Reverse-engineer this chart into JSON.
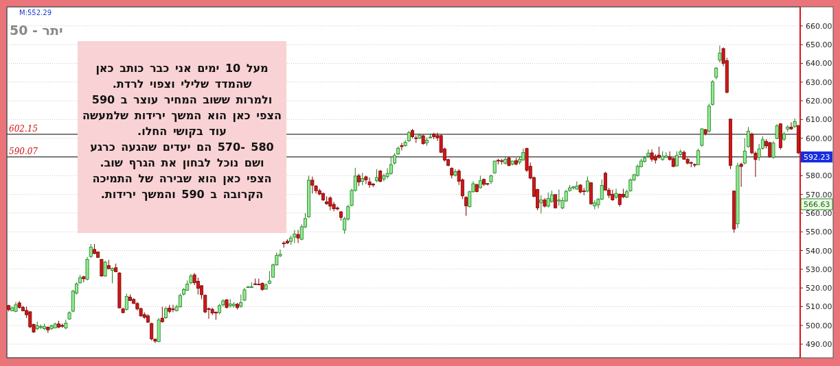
{
  "chart_data": {
    "type": "candlestick",
    "title": "יתר - 50",
    "annotations": [
      "M:552.29",
      "מעל 10 ימים אני כבר כותב כאן\nשהמדד שלילי וצפוי לרדת.\nולמרות ששוב המחיר עוצר ב 590\nהצפי כאן הוא המשך ירידות שלמעשה\nעוד בקושי החלו.\n580 -570 הם יעדים שהגעה כרגע\nושם נוכל לבחון את הגרף שוב.\nהצפי כאן הוא שבירה של התמיכה\nהקרובה ב 590 והמשך ירידות.",
      "592.23",
      "566.63"
    ],
    "categories": [
      null,
      null,
      null,
      null,
      null,
      null,
      null,
      null,
      null,
      null,
      null,
      null,
      null,
      null,
      null,
      null,
      null,
      null,
      null,
      null,
      null,
      null,
      null,
      null,
      null,
      null,
      null,
      null,
      null,
      null,
      null,
      null,
      null,
      null,
      null,
      null,
      null,
      null,
      null,
      null,
      null,
      null,
      null,
      null,
      null,
      null,
      null,
      null,
      null,
      null,
      null,
      null,
      null,
      null,
      null,
      null,
      null,
      null,
      null,
      null,
      null,
      null,
      null,
      null,
      null,
      null,
      null,
      null,
      null,
      null,
      null,
      null,
      null,
      null,
      null,
      null,
      null,
      null,
      null,
      null,
      null,
      null,
      null,
      null,
      null,
      null,
      null,
      null,
      null,
      null,
      null,
      null,
      null,
      null,
      null,
      null,
      null,
      null,
      null,
      null,
      null,
      null,
      null,
      null,
      null,
      null,
      null,
      null,
      null,
      null,
      null,
      null,
      null,
      null,
      null,
      null,
      null,
      null,
      null,
      null,
      null,
      null,
      null,
      null,
      null,
      null,
      null,
      null,
      null,
      null,
      null,
      null,
      null,
      null,
      null,
      null,
      null,
      null,
      null,
      null,
      null,
      null,
      null,
      null,
      null,
      null,
      null,
      null,
      null,
      null,
      null,
      null,
      null,
      null,
      null,
      null,
      null,
      null,
      null,
      null,
      null,
      null,
      null,
      null,
      null,
      null,
      null,
      null,
      null,
      null,
      null,
      null,
      null,
      null,
      null,
      null,
      null,
      null,
      null,
      null,
      null,
      null,
      null,
      null,
      null,
      null,
      null,
      null,
      null,
      null,
      null,
      null,
      null,
      null,
      null,
      null,
      null,
      null,
      null,
      null,
      null,
      null,
      null,
      null,
      null,
      null,
      null,
      null,
      null,
      null,
      null,
      null,
      null,
      null,
      null,
      null,
      null,
      null,
      null,
      null,
      null,
      null
    ],
    "ohlc": [
      [
        510.6,
        511,
        507.5,
        508.4
      ],
      [
        507.8,
        510,
        507.5,
        509.4
      ],
      [
        507.5,
        512.5,
        507,
        511
      ],
      [
        512,
        513,
        509,
        509.6
      ],
      [
        509.6,
        510.5,
        507.5,
        507.8
      ],
      [
        508,
        510,
        504,
        505.7
      ],
      [
        507.3,
        507.5,
        498.5,
        499.2
      ],
      [
        500.5,
        501,
        496,
        496.5
      ],
      [
        498.2,
        502,
        497.5,
        499.9
      ],
      [
        499,
        500.5,
        498,
        499.3
      ],
      [
        498.2,
        501,
        497.5,
        499.5
      ],
      [
        499,
        499.5,
        496,
        497.6
      ],
      [
        498.3,
        500.5,
        497.5,
        499.7
      ],
      [
        498.6,
        501.5,
        498.5,
        500.7
      ],
      [
        500.8,
        502.5,
        498.5,
        499.1
      ],
      [
        500,
        501,
        498.7,
        499.5
      ],
      [
        498.6,
        503,
        498,
        501.2
      ],
      [
        503.4,
        507.5,
        503,
        506.8
      ],
      [
        507.6,
        519,
        507,
        518.3
      ],
      [
        517.2,
        523,
        516.5,
        522.2
      ],
      [
        522.7,
        527,
        522.5,
        525.5
      ],
      [
        526,
        526.5,
        523,
        524.9
      ],
      [
        524.7,
        536.5,
        524,
        535.3
      ],
      [
        536.8,
        543.5,
        536,
        541.8
      ],
      [
        540.6,
        543.5,
        538,
        538.4
      ],
      [
        539.2,
        539.5,
        536,
        536.3
      ],
      [
        535.3,
        535.5,
        526,
        526.4
      ],
      [
        526.4,
        534.5,
        526,
        533.8
      ],
      [
        532,
        535,
        530,
        530.3
      ],
      [
        529.4,
        531,
        522.5,
        530.4
      ],
      [
        530.8,
        533,
        528.5,
        528.6
      ],
      [
        528,
        528.5,
        509,
        509.4
      ],
      [
        508.8,
        509.5,
        506.5,
        506.8
      ],
      [
        508.5,
        517,
        508,
        515.5
      ],
      [
        515.1,
        516.5,
        513,
        513.3
      ],
      [
        513.9,
        514.5,
        511.5,
        511.7
      ],
      [
        511.7,
        512.5,
        508,
        508.8
      ],
      [
        509,
        509.5,
        504.5,
        505.1
      ],
      [
        505.8,
        507,
        503.5,
        504.3
      ],
      [
        505.1,
        506,
        501.5,
        501.7
      ],
      [
        501,
        501.5,
        492,
        492.8
      ],
      [
        492.6,
        493,
        490.6,
        491.6
      ],
      [
        491.3,
        504,
        491,
        502.9
      ],
      [
        503.9,
        510,
        501.5,
        501.9
      ],
      [
        504.1,
        510,
        503.5,
        509
      ],
      [
        509.3,
        511,
        506.5,
        507.5
      ],
      [
        508.8,
        511,
        507,
        508.5
      ],
      [
        507.8,
        511,
        507.5,
        509.9
      ],
      [
        510,
        517,
        509.5,
        516
      ],
      [
        516.7,
        520,
        516,
        519.2
      ],
      [
        518.8,
        524,
        518.5,
        522.1
      ],
      [
        522.7,
        527.5,
        522,
        526.4
      ],
      [
        527,
        528,
        521.5,
        522.8
      ],
      [
        523.6,
        525.5,
        516.5,
        519.8
      ],
      [
        521.2,
        521.5,
        514,
        516.4
      ],
      [
        516.1,
        516.5,
        506.5,
        507.2
      ],
      [
        509,
        509.5,
        503.5,
        508.5
      ],
      [
        508.6,
        509.5,
        505.5,
        506.6
      ],
      [
        507,
        507.5,
        503,
        506.6
      ],
      [
        506.8,
        511.5,
        506,
        510.6
      ],
      [
        511,
        514,
        510,
        513.1
      ],
      [
        513.7,
        514,
        509,
        509.6
      ],
      [
        510.5,
        514,
        509.5,
        511.5
      ],
      [
        510.5,
        512.5,
        509.5,
        511.3
      ],
      [
        511.3,
        512,
        508.5,
        509.5
      ],
      [
        510.2,
        516.5,
        509.5,
        512.2
      ],
      [
        513.5,
        520,
        513,
        519
      ],
      [
        520.4,
        521,
        520,
        520.6
      ],
      [
        520.3,
        523,
        520,
        520.7
      ],
      [
        522.2,
        525,
        521.5,
        521.9
      ],
      [
        522,
        525,
        521.5,
        521.7
      ],
      [
        522.5,
        523,
        518.5,
        519.2
      ],
      [
        519.4,
        522.5,
        519,
        521.6
      ],
      [
        522.5,
        529,
        522,
        523.7
      ],
      [
        525.8,
        533,
        525.5,
        532.3
      ],
      [
        532.3,
        539,
        532,
        537.4
      ],
      [
        537.2,
        540.5,
        536.5,
        538
      ],
      [
        544,
        545,
        541.5,
        543.6
      ],
      [
        545,
        546,
        543.5,
        544
      ],
      [
        544.9,
        548,
        543,
        546.7
      ],
      [
        547.2,
        551,
        544,
        548.8
      ],
      [
        548.6,
        551,
        544,
        546.7
      ],
      [
        546,
        554,
        545.5,
        552.7
      ],
      [
        552.6,
        560,
        552,
        557.1
      ],
      [
        558,
        580,
        557.5,
        577.6
      ],
      [
        577.6,
        579.5,
        570.5,
        574.9
      ],
      [
        574.5,
        575,
        570.5,
        572
      ],
      [
        572,
        573,
        569.5,
        570.2
      ],
      [
        570.5,
        571,
        566.5,
        567
      ],
      [
        566,
        569,
        564.5,
        565
      ],
      [
        568.1,
        569,
        561.5,
        563.7
      ],
      [
        564.7,
        566,
        561,
        562.3
      ],
      [
        562.8,
        563.5,
        561.5,
        562.2
      ],
      [
        560.7,
        561,
        556,
        557.7
      ],
      [
        551,
        558,
        549,
        557
      ],
      [
        556.8,
        564.5,
        556,
        563.5
      ],
      [
        564.1,
        573,
        563.5,
        572.1
      ],
      [
        572.1,
        584.2,
        571.5,
        579.8
      ],
      [
        580,
        581,
        574.5,
        576.6
      ],
      [
        576.9,
        581.5,
        575,
        578.5
      ],
      [
        579.4,
        580,
        575.5,
        577.8
      ],
      [
        576.7,
        579,
        573.5,
        575.1
      ],
      [
        575.5,
        576,
        573.9,
        575
      ],
      [
        577.3,
        583.5,
        576.5,
        579
      ],
      [
        582.5,
        583,
        576.5,
        576.9
      ],
      [
        578.2,
        581,
        577,
        580
      ],
      [
        579.6,
        584,
        578.5,
        581.2
      ],
      [
        581.2,
        590,
        580.5,
        585.9
      ],
      [
        586.7,
        592,
        586,
        590.8
      ],
      [
        591.6,
        595.5,
        591,
        594.7
      ],
      [
        596,
        597.5,
        593.5,
        595.5
      ],
      [
        596,
        599,
        595.5,
        597.8
      ],
      [
        598.6,
        604,
        598,
        603
      ],
      [
        604.1,
        605,
        600,
        600.8
      ],
      [
        600.2,
        601.5,
        597.5,
        599.8
      ],
      [
        600,
        602.5,
        599.5,
        601.7
      ],
      [
        601.3,
        602,
        596.5,
        597.1
      ],
      [
        597.5,
        600.5,
        596,
        599
      ],
      [
        600.3,
        602.5,
        600,
        600.6
      ],
      [
        602.2,
        603,
        599.5,
        600.8
      ],
      [
        601.4,
        603,
        598.5,
        600.2
      ],
      [
        601.4,
        602,
        592,
        592.5
      ],
      [
        594.3,
        595,
        587.5,
        588.3
      ],
      [
        588.6,
        589,
        585,
        585.5
      ],
      [
        583.9,
        584.5,
        578.5,
        580.3
      ],
      [
        580.3,
        583.5,
        579.5,
        582.1
      ],
      [
        582.5,
        583.5,
        575,
        577
      ],
      [
        577.8,
        578.5,
        567.5,
        569.2
      ],
      [
        568.4,
        569,
        558.6,
        563.9
      ],
      [
        563.5,
        572,
        563,
        571.4
      ],
      [
        571.4,
        577,
        571,
        575.7
      ],
      [
        575.3,
        575.5,
        571,
        571.5
      ],
      [
        573.6,
        580,
        573,
        577.3
      ],
      [
        578,
        578.5,
        574.5,
        575.4
      ],
      [
        575.8,
        576,
        574.8,
        575.4
      ],
      [
        576.8,
        580.5,
        575.5,
        579.9
      ],
      [
        581.5,
        588,
        581,
        587.8
      ],
      [
        588.2,
        589,
        586,
        587.8
      ],
      [
        588,
        589,
        586,
        587.6
      ],
      [
        586.6,
        590,
        586,
        588.7
      ],
      [
        589.4,
        590,
        585,
        585.4
      ],
      [
        586.2,
        588,
        585.5,
        587.8
      ],
      [
        588,
        589.5,
        585.5,
        586.2
      ],
      [
        587.2,
        590,
        586,
        588.8
      ],
      [
        588.4,
        594.5,
        588,
        592.4
      ],
      [
        594.5,
        595,
        582,
        582.9
      ],
      [
        585,
        587,
        578,
        578.7
      ],
      [
        579,
        579.5,
        568.5,
        568.9
      ],
      [
        572.6,
        573,
        561.5,
        562.8
      ],
      [
        565.5,
        569.5,
        559.8,
        567
      ],
      [
        567,
        568,
        563,
        563.7
      ],
      [
        563.7,
        571,
        563,
        567.8
      ],
      [
        566.2,
        572,
        565.5,
        569.8
      ],
      [
        569.9,
        570,
        562.5,
        562.8
      ],
      [
        566.5,
        572.6,
        564,
        567
      ],
      [
        562.8,
        568.5,
        562,
        566.7
      ],
      [
        566.5,
        572.5,
        566,
        571.6
      ],
      [
        572,
        575,
        571.5,
        573.5
      ],
      [
        573.5,
        574.5,
        572.5,
        574
      ],
      [
        572.8,
        577,
        572.5,
        574.4
      ],
      [
        575,
        575.5,
        570.5,
        571.3
      ],
      [
        571.9,
        573.5,
        569.5,
        571.5
      ],
      [
        571.7,
        579.5,
        571,
        577.2
      ],
      [
        576.2,
        576.5,
        564.5,
        565
      ],
      [
        563.8,
        567,
        562,
        565.5
      ],
      [
        564.4,
        568,
        562.5,
        567.4
      ],
      [
        567.4,
        578,
        567,
        574.8
      ],
      [
        581.3,
        582,
        572,
        572.3
      ],
      [
        572.3,
        573.5,
        568,
        569.5
      ],
      [
        570.1,
        572.5,
        566.5,
        567.1
      ],
      [
        568.5,
        573,
        567.5,
        570.5
      ],
      [
        570.1,
        570.5,
        563.5,
        564.6
      ],
      [
        570.1,
        573,
        568,
        568.7
      ],
      [
        568.5,
        572.5,
        568,
        571.4
      ],
      [
        571.9,
        578.5,
        571.5,
        577.7
      ],
      [
        577.7,
        581,
        577,
        580.5
      ],
      [
        580.1,
        586,
        579.5,
        585
      ],
      [
        584.8,
        589,
        584.5,
        587.8
      ],
      [
        587.6,
        590.5,
        587,
        589.4
      ],
      [
        590.4,
        594,
        589.5,
        592
      ],
      [
        592.2,
        594,
        587.5,
        588.8
      ],
      [
        590.4,
        591.5,
        586.5,
        588.3
      ],
      [
        591,
        595.5,
        589,
        589.8
      ],
      [
        588.6,
        593,
        588,
        590.4
      ],
      [
        589.8,
        592.5,
        589.5,
        590.5
      ],
      [
        590.1,
        593,
        588,
        588.6
      ],
      [
        589.2,
        589.5,
        584.5,
        584.9
      ],
      [
        585.2,
        593,
        585,
        590.8
      ],
      [
        591.3,
        594,
        590.5,
        592.8
      ],
      [
        592.5,
        593.5,
        588.5,
        588.8
      ],
      [
        588.8,
        589.5,
        586,
        586.7
      ],
      [
        587,
        587.5,
        584.5,
        586.7
      ],
      [
        586,
        586.5,
        584.5,
        585.7
      ],
      [
        585.9,
        594.5,
        585.5,
        593.4
      ],
      [
        596.2,
        605.5,
        595.5,
        605
      ],
      [
        604.6,
        605,
        601.5,
        602.6
      ],
      [
        603.8,
        618.5,
        603,
        617.2
      ],
      [
        618.1,
        631,
        617.5,
        630.2
      ],
      [
        632.6,
        638,
        631.5,
        637.5
      ],
      [
        641.7,
        649.5,
        640.5,
        645.5
      ],
      [
        647.9,
        648.5,
        638.5,
        640
      ],
      [
        641.5,
        643,
        624,
        624.5
      ],
      [
        610.2,
        610.5,
        583.5,
        585.5
      ],
      [
        571.8,
        572,
        549.5,
        551.5
      ],
      [
        554.3,
        587,
        552,
        585.3
      ],
      [
        586.1,
        587,
        574,
        584.9
      ],
      [
        586.7,
        600,
        586,
        593.1
      ],
      [
        595.5,
        606,
        595,
        603.8
      ],
      [
        602.3,
        603,
        591.5,
        592.2
      ],
      [
        592,
        593,
        579.4,
        588.6
      ],
      [
        589.8,
        597,
        588,
        594.3
      ],
      [
        594.6,
        601,
        594,
        599.2
      ],
      [
        598.3,
        599.5,
        594.5,
        595.9
      ],
      [
        597.7,
        598,
        589.5,
        590.1
      ],
      [
        589.8,
        598.5,
        589,
        597.4
      ],
      [
        599.9,
        607.5,
        599.5,
        606.6
      ],
      [
        607.7,
        608,
        594,
        595
      ],
      [
        599.5,
        603.5,
        598.5,
        602.2
      ],
      [
        604.9,
        607,
        603.5,
        606
      ],
      [
        605.9,
        608.5,
        604.5,
        605
      ],
      [
        606.2,
        610.5,
        605.5,
        608.9
      ],
      [
        606.8,
        607,
        591.5,
        592.2
      ]
    ],
    "ylim": [
      482.7,
      670.2
    ],
    "yticks": [
      {
        "value": 490,
        "label": "490.00"
      },
      {
        "value": 500,
        "label": "500.00"
      },
      {
        "value": 510,
        "label": "510.00"
      },
      {
        "value": 520,
        "label": "520.00"
      },
      {
        "value": 530,
        "label": "530.00"
      },
      {
        "value": 540,
        "label": "540.00"
      },
      {
        "value": 550,
        "label": "550.00"
      },
      {
        "value": 560,
        "label": "560.00"
      },
      {
        "value": 570,
        "label": "570.00"
      },
      {
        "value": 580,
        "label": "580.00"
      },
      {
        "value": 590,
        "label": null
      },
      {
        "value": 600,
        "label": "600.00"
      },
      {
        "value": 610,
        "label": "610.00"
      },
      {
        "value": 620,
        "label": "620.00"
      },
      {
        "value": 630,
        "label": "630.00"
      },
      {
        "value": 640,
        "label": "640.00"
      },
      {
        "value": 650,
        "label": "650.00"
      },
      {
        "value": 660,
        "label": "660.00"
      }
    ],
    "ref_lines": [
      {
        "axis": "y",
        "value": 602.15,
        "label": "602.15",
        "color": "#333333"
      },
      {
        "axis": "y",
        "value": 590.07,
        "label": "590.07",
        "color": "#333333"
      }
    ],
    "grid": "y",
    "tick_labels": "y"
  }
}
